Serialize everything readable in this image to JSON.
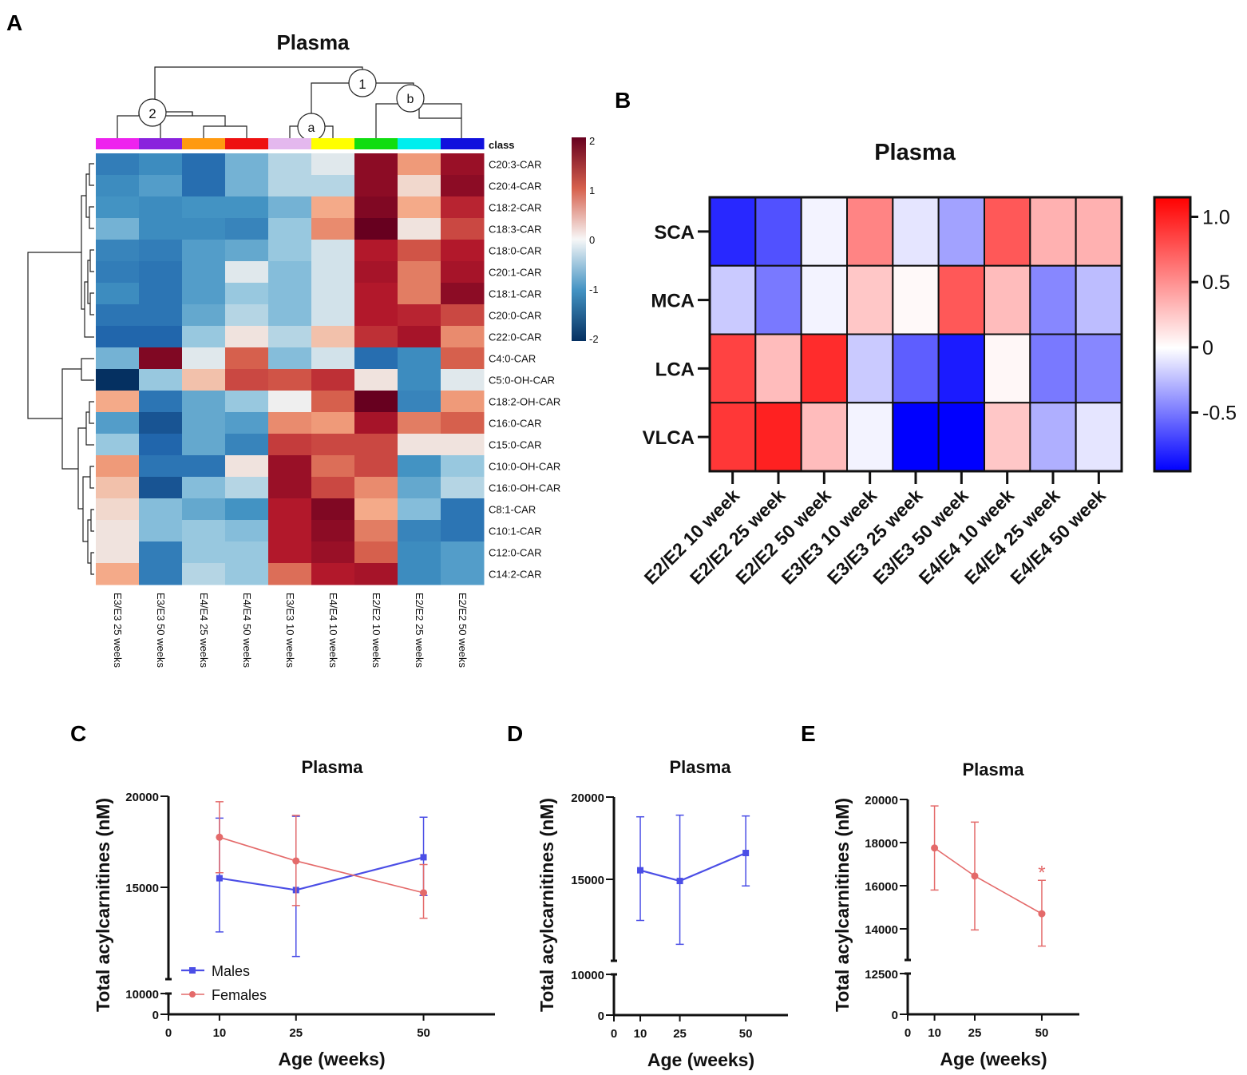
{
  "panel_letters": {
    "a": "A",
    "b": "B",
    "c": "C",
    "d": "D",
    "e": "E"
  },
  "colors": {
    "male": "#4b4ee6",
    "female": "#e46a6a",
    "cluster_class": [
      "#ee22ee",
      "#8a22dd",
      "#ff9a10",
      "#ee1111",
      "#e4b8ee",
      "#ffff00",
      "#11dd11",
      "#00eeee",
      "#1111dd"
    ]
  },
  "chart_data": [
    {
      "type": "heatmap",
      "title": "Plasma",
      "class_label": "class",
      "columns": [
        "E3/E3 25 weeks",
        "E3/E3 50 weeks",
        "E4/E4 25 weeks",
        "E4/E4 50 weeks",
        "E3/E3 10 weeks",
        "E4/E4 10 weeks",
        "E2/E2 10 weeks",
        "E2/E2 25 weeks",
        "E2/E2 50 weeks"
      ],
      "rows": [
        "C20:3-CAR",
        "C20:4-CAR",
        "C18:2-CAR",
        "C18:3-CAR",
        "C18:0-CAR",
        "C20:1-CAR",
        "C18:1-CAR",
        "C20:0-CAR",
        "C22:0-CAR",
        "C4:0-CAR",
        "C5:0-OH-CAR",
        "C18:2-OH-CAR",
        "C16:0-CAR",
        "C15:0-CAR",
        "C10:0-OH-CAR",
        "C16:0-OH-CAR",
        "C8:1-CAR",
        "C10:1-CAR",
        "C12:0-CAR",
        "C14:2-CAR"
      ],
      "values": [
        [
          -1.1,
          -0.9,
          -1.3,
          -0.5,
          -0.2,
          -0.05,
          1.7,
          0.4,
          1.6
        ],
        [
          -0.9,
          -0.7,
          -1.3,
          -0.5,
          -0.2,
          -0.2,
          1.7,
          0.1,
          1.7
        ],
        [
          -0.8,
          -0.9,
          -0.8,
          -0.8,
          -0.5,
          0.3,
          1.8,
          0.3,
          1.3
        ],
        [
          -0.5,
          -0.9,
          -0.9,
          -1.0,
          -0.3,
          0.5,
          2.1,
          0.05,
          1.0
        ],
        [
          -1.0,
          -1.1,
          -0.7,
          -0.6,
          -0.3,
          -0.1,
          1.4,
          0.9,
          1.4
        ],
        [
          -1.1,
          -1.2,
          -0.7,
          -0.05,
          -0.4,
          -0.1,
          1.5,
          0.6,
          1.5
        ],
        [
          -0.9,
          -1.2,
          -0.7,
          -0.3,
          -0.4,
          -0.1,
          1.4,
          0.6,
          1.7
        ],
        [
          -1.2,
          -1.2,
          -0.6,
          -0.2,
          -0.4,
          -0.1,
          1.4,
          1.3,
          1.0
        ],
        [
          -1.4,
          -1.4,
          -0.3,
          0.05,
          -0.2,
          0.2,
          1.2,
          1.5,
          0.5
        ],
        [
          -0.5,
          1.8,
          -0.05,
          0.8,
          -0.4,
          -0.1,
          -1.3,
          -0.9,
          0.8
        ],
        [
          -2.0,
          -0.3,
          0.2,
          1.0,
          0.9,
          1.2,
          0.05,
          -0.9,
          -0.05
        ],
        [
          0.3,
          -1.2,
          -0.6,
          -0.3,
          0.0,
          0.8,
          2.1,
          -1.0,
          0.4
        ],
        [
          -0.7,
          -1.6,
          -0.6,
          -0.7,
          0.5,
          0.4,
          1.5,
          0.6,
          0.8
        ],
        [
          -0.3,
          -1.4,
          -0.6,
          -1.0,
          1.1,
          1.0,
          1.0,
          0.05,
          0.05
        ],
        [
          0.4,
          -1.2,
          -1.2,
          0.05,
          1.6,
          0.7,
          1.0,
          -0.8,
          -0.3
        ],
        [
          0.2,
          -1.6,
          -0.4,
          -0.2,
          1.6,
          1.0,
          0.5,
          -0.6,
          -0.2
        ],
        [
          0.1,
          -0.4,
          -0.6,
          -0.8,
          1.4,
          1.8,
          0.3,
          -0.4,
          -1.2
        ],
        [
          0.05,
          -0.4,
          -0.3,
          -0.4,
          1.4,
          1.7,
          0.6,
          -1.0,
          -1.2
        ],
        [
          0.05,
          -1.1,
          -0.3,
          -0.3,
          1.4,
          1.6,
          0.8,
          -0.9,
          -0.7
        ],
        [
          0.3,
          -1.1,
          -0.2,
          -0.3,
          0.7,
          1.4,
          1.5,
          -0.9,
          -0.7
        ]
      ],
      "colorbar_ticks": [
        "2",
        "1",
        "0",
        "-1",
        "-2"
      ],
      "vmin": -2,
      "vmax": 2,
      "cluster_labels": [
        "1",
        "2",
        "a",
        "b"
      ]
    },
    {
      "type": "heatmap",
      "title": "Plasma",
      "rows": [
        "SCA",
        "MCA",
        "LCA",
        "VLCA"
      ],
      "columns": [
        "E2/E2 10 week",
        "E2/E2 25 week",
        "E2/E2 50 week",
        "E3/E3 10 week",
        "E3/E3 25 week",
        "E3/E3 50 week",
        "E4/E4 10 week",
        "E4/E4 25 week",
        "E4/E4 50 week"
      ],
      "values": [
        [
          -0.8,
          -0.65,
          -0.05,
          0.55,
          -0.1,
          -0.35,
          0.75,
          0.35,
          0.35
        ],
        [
          -0.2,
          -0.5,
          -0.05,
          0.25,
          0.02,
          0.75,
          0.3,
          -0.45,
          -0.25
        ],
        [
          0.85,
          0.3,
          0.95,
          -0.2,
          -0.6,
          -0.85,
          0.03,
          -0.5,
          -0.45
        ],
        [
          0.9,
          1.0,
          0.3,
          -0.05,
          -0.95,
          -0.95,
          0.25,
          -0.3,
          -0.1
        ]
      ],
      "colorbar_ticks": [
        "1.0",
        "0.5",
        "0",
        "-0.5"
      ],
      "vmin": -0.95,
      "vmax": 1.15
    },
    {
      "type": "line",
      "title": "Plasma",
      "xlabel": "Age (weeks)",
      "ylabel": "Total acylcarnitines (nM)",
      "x": [
        10,
        25,
        50
      ],
      "x_ticks": [
        "0",
        "10",
        "25",
        "50"
      ],
      "y_ticks": [
        "20000",
        "15000",
        "10000",
        "0"
      ],
      "series": [
        {
          "name": "Males",
          "values": [
            15500,
            14850,
            16650
          ],
          "err_low": [
            12550,
            11200,
            14550
          ],
          "err_high": [
            18800,
            18900,
            18850
          ]
        },
        {
          "name": "Females",
          "values": [
            17750,
            16450,
            14700
          ],
          "err_low": [
            15800,
            14000,
            13300
          ],
          "err_high": [
            19700,
            18950,
            16250
          ]
        }
      ]
    },
    {
      "type": "line",
      "title": "Plasma",
      "xlabel": "Age (weeks)",
      "ylabel": "Total acylcarnitines (nM)",
      "x": [
        10,
        25,
        50
      ],
      "x_ticks": [
        "0",
        "10",
        "25",
        "50"
      ],
      "y_ticks": [
        "20000",
        "15000",
        "10000",
        "0"
      ],
      "series": [
        {
          "name": "Males",
          "values": [
            15550,
            14900,
            16600
          ],
          "err_low": [
            12500,
            11050,
            14600
          ],
          "err_high": [
            18800,
            18900,
            18850
          ]
        }
      ]
    },
    {
      "type": "line",
      "title": "Plasma",
      "xlabel": "Age (weeks)",
      "ylabel": "Total acylcarnitines (nM)",
      "x": [
        10,
        25,
        50
      ],
      "x_ticks": [
        "0",
        "10",
        "25",
        "50"
      ],
      "y_ticks": [
        "20000",
        "18000",
        "16000",
        "14000",
        "12500",
        "0"
      ],
      "annotation": "*",
      "series": [
        {
          "name": "Females",
          "values": [
            17750,
            16450,
            14700
          ],
          "err_low": [
            15800,
            13950,
            13200
          ],
          "err_high": [
            19700,
            18950,
            16250
          ]
        }
      ]
    }
  ]
}
